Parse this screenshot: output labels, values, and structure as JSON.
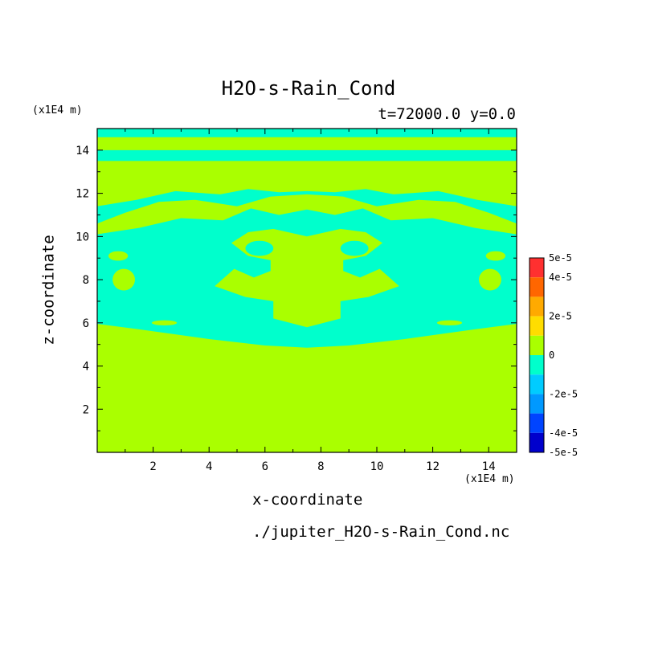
{
  "title": "H2O-s-Rain_Cond",
  "subtitle": "t=72000.0 y=0.0",
  "source_file": "./jupiter_H2O-s-Rain_Cond.nc",
  "colors": {
    "positive_band": "#aaff00",
    "negative_band": "#00ffcc",
    "axis": "#000000"
  },
  "chart_data": {
    "type": "heatmap",
    "title": "H2O-s-Rain_Cond",
    "subtitle": "t=72000.0 y=0.0",
    "xlabel": "x-coordinate",
    "ylabel": "z-coordinate",
    "x_unit": "(x1E4 m)",
    "y_unit": "(x1E4 m)",
    "xlim": [
      0,
      15
    ],
    "ylim": [
      0,
      15
    ],
    "x_ticks": [
      2,
      4,
      6,
      8,
      10,
      12,
      14
    ],
    "y_ticks": [
      2,
      4,
      6,
      8,
      10,
      12,
      14
    ],
    "colorbar": {
      "labels": [
        "5e-5",
        "4e-5",
        "2e-5",
        "0",
        "-2e-5",
        "-4e-5",
        "-5e-5"
      ],
      "label_values": [
        5e-05,
        4e-05,
        2e-05,
        0,
        -2e-05,
        -4e-05,
        -5e-05
      ],
      "levels": [
        {
          "from": 4e-05,
          "to": 5e-05,
          "color": "#ff3030"
        },
        {
          "from": 3e-05,
          "to": 4e-05,
          "color": "#ff6600"
        },
        {
          "from": 2e-05,
          "to": 3e-05,
          "color": "#ffaa00"
        },
        {
          "from": 1e-05,
          "to": 2e-05,
          "color": "#ffdd00"
        },
        {
          "from": 0,
          "to": 1e-05,
          "color": "#aaff00"
        },
        {
          "from": -1e-05,
          "to": 0,
          "color": "#00ffcc"
        },
        {
          "from": -2e-05,
          "to": -1e-05,
          "color": "#00ccff"
        },
        {
          "from": -3e-05,
          "to": -2e-05,
          "color": "#0099ff"
        },
        {
          "from": -4e-05,
          "to": -3e-05,
          "color": "#0044ff"
        },
        {
          "from": -5e-05,
          "to": -4e-05,
          "color": "#0000cc"
        }
      ]
    },
    "field": {
      "background_value": "0 to 1e-5",
      "negative_regions": [
        {
          "shape": "band",
          "z_range": [
            13.5,
            14.0
          ]
        },
        {
          "shape": "band",
          "z_range": [
            14.6,
            15.0
          ]
        },
        {
          "shape": "polygon",
          "points": [
            [
              0,
              5.95
            ],
            [
              1.5,
              5.7
            ],
            [
              4,
              5.25
            ],
            [
              6,
              4.95
            ],
            [
              7.5,
              4.85
            ],
            [
              9,
              4.95
            ],
            [
              11,
              5.25
            ],
            [
              13.5,
              5.7
            ],
            [
              15,
              5.95
            ],
            [
              15,
              10.1
            ],
            [
              13.5,
              10.4
            ],
            [
              12,
              10.85
            ],
            [
              10.5,
              10.75
            ],
            [
              9.5,
              11.3
            ],
            [
              8.5,
              11.0
            ],
            [
              7.5,
              11.25
            ],
            [
              6.5,
              11.0
            ],
            [
              5.5,
              11.3
            ],
            [
              4.5,
              10.75
            ],
            [
              3,
              10.85
            ],
            [
              1.5,
              10.4
            ],
            [
              0,
              10.1
            ]
          ]
        },
        {
          "shape": "polygon",
          "points": [
            [
              0,
              10.6
            ],
            [
              1,
              11.1
            ],
            [
              2.2,
              11.6
            ],
            [
              3.5,
              11.7
            ],
            [
              5,
              11.4
            ],
            [
              6.2,
              11.85
            ],
            [
              7.5,
              11.95
            ],
            [
              8.8,
              11.85
            ],
            [
              10,
              11.4
            ],
            [
              11.5,
              11.7
            ],
            [
              12.8,
              11.6
            ],
            [
              14,
              11.1
            ],
            [
              15,
              10.6
            ],
            [
              15,
              11.4
            ],
            [
              13.6,
              11.7
            ],
            [
              12.2,
              12.1
            ],
            [
              10.6,
              11.95
            ],
            [
              9.6,
              12.2
            ],
            [
              8.5,
              12.05
            ],
            [
              7.5,
              12.1
            ],
            [
              6.5,
              12.05
            ],
            [
              5.4,
              12.2
            ],
            [
              4.4,
              11.95
            ],
            [
              2.8,
              12.1
            ],
            [
              1.4,
              11.7
            ],
            [
              0,
              11.4
            ]
          ]
        }
      ],
      "positive_islands": [
        {
          "shape": "ellipse",
          "center": [
            0.75,
            9.1
          ],
          "radii": [
            0.35,
            0.22
          ]
        },
        {
          "shape": "ellipse",
          "center": [
            0.95,
            8.0
          ],
          "radii": [
            0.4,
            0.5
          ]
        },
        {
          "shape": "ellipse",
          "center": [
            14.25,
            9.1
          ],
          "radii": [
            0.35,
            0.22
          ]
        },
        {
          "shape": "ellipse",
          "center": [
            14.05,
            8.0
          ],
          "radii": [
            0.4,
            0.5
          ]
        },
        {
          "shape": "ellipse",
          "center": [
            2.4,
            11.05
          ],
          "radii": [
            0.6,
            0.28
          ]
        },
        {
          "shape": "ellipse",
          "center": [
            12.6,
            11.05
          ],
          "radii": [
            0.6,
            0.28
          ]
        },
        {
          "shape": "ellipse",
          "center": [
            2.4,
            6.0
          ],
          "radii": [
            0.45,
            0.12
          ]
        },
        {
          "shape": "ellipse",
          "center": [
            12.6,
            6.0
          ],
          "radii": [
            0.45,
            0.12
          ]
        },
        {
          "shape": "polygon",
          "points": [
            [
              4.2,
              7.7
            ],
            [
              4.9,
              8.5
            ],
            [
              5.6,
              8.1
            ],
            [
              6.2,
              8.4
            ],
            [
              6.2,
              8.9
            ],
            [
              5.4,
              9.1
            ],
            [
              4.8,
              9.7
            ],
            [
              5.4,
              10.2
            ],
            [
              6.3,
              10.35
            ],
            [
              7.5,
              10.0
            ],
            [
              8.7,
              10.35
            ],
            [
              9.6,
              10.2
            ],
            [
              10.2,
              9.7
            ],
            [
              9.6,
              9.1
            ],
            [
              8.8,
              8.9
            ],
            [
              8.8,
              8.4
            ],
            [
              9.4,
              8.1
            ],
            [
              10.1,
              8.5
            ],
            [
              10.8,
              7.7
            ],
            [
              9.7,
              7.2
            ],
            [
              8.7,
              7.0
            ],
            [
              8.7,
              6.2
            ],
            [
              7.5,
              5.8
            ],
            [
              6.3,
              6.2
            ],
            [
              6.3,
              7.0
            ],
            [
              5.3,
              7.2
            ]
          ]
        }
      ],
      "negative_holes": [
        {
          "shape": "ellipse",
          "center": [
            5.8,
            9.45
          ],
          "radii": [
            0.5,
            0.35
          ]
        },
        {
          "shape": "ellipse",
          "center": [
            9.2,
            9.45
          ],
          "radii": [
            0.5,
            0.35
          ]
        }
      ]
    }
  }
}
